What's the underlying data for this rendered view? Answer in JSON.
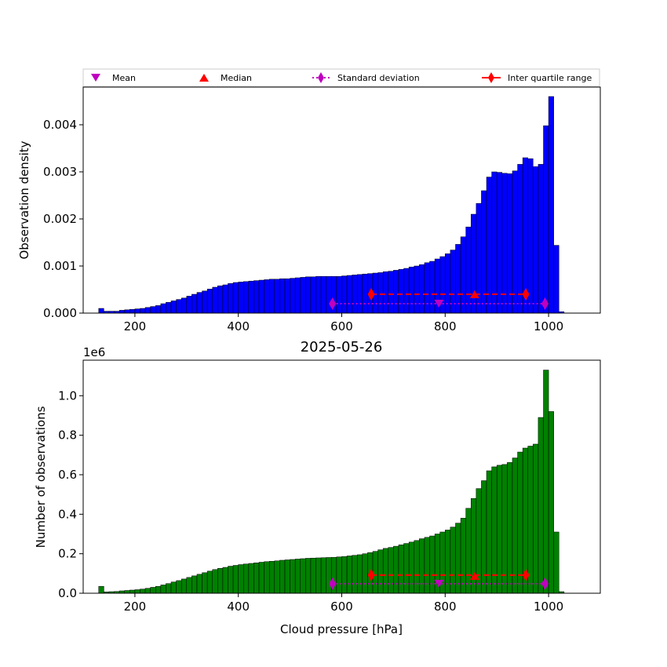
{
  "figure": {
    "title": "2025-05-26",
    "legend": [
      "Mean",
      "Median",
      "Standard deviation",
      "Inter quartile range"
    ]
  },
  "chart_data": [
    {
      "type": "bar",
      "panel": "top",
      "ylabel": "Observation density",
      "xlabel": "",
      "xlim": [
        100,
        1100
      ],
      "ylim": [
        0,
        0.0048
      ],
      "bar_color": "#0000ff",
      "bin_start": 130,
      "bin_width": 10,
      "values": [
        0.0001,
        4e-05,
        4e-05,
        4e-05,
        6e-05,
        7e-05,
        8e-05,
        9e-05,
        0.0001,
        0.00012,
        0.00014,
        0.00016,
        0.0002,
        0.00023,
        0.00026,
        0.00029,
        0.00032,
        0.00036,
        0.0004,
        0.00044,
        0.00047,
        0.00051,
        0.00055,
        0.00058,
        0.0006,
        0.00063,
        0.00065,
        0.00066,
        0.00067,
        0.00068,
        0.00069,
        0.0007,
        0.00071,
        0.00072,
        0.00072,
        0.00073,
        0.00073,
        0.00074,
        0.00075,
        0.00076,
        0.00077,
        0.00077,
        0.00078,
        0.00078,
        0.00078,
        0.00078,
        0.00078,
        0.00079,
        0.0008,
        0.00081,
        0.00082,
        0.00083,
        0.00084,
        0.00085,
        0.00086,
        0.00088,
        0.00089,
        0.00091,
        0.00093,
        0.00095,
        0.00098,
        0.001,
        0.00103,
        0.00107,
        0.0011,
        0.00115,
        0.0012,
        0.00126,
        0.00134,
        0.00146,
        0.00162,
        0.00183,
        0.0021,
        0.00233,
        0.0026,
        0.00289,
        0.003,
        0.00299,
        0.00297,
        0.00296,
        0.00302,
        0.00316,
        0.0033,
        0.00328,
        0.00311,
        0.00316,
        0.00398,
        0.0046,
        0.00144,
        3e-05
      ],
      "yticks": [
        "0.000",
        "0.001",
        "0.002",
        "0.003",
        "0.004"
      ],
      "ytick_values": [
        0,
        0.001,
        0.002,
        0.003,
        0.004
      ],
      "xticks": [
        "200",
        "400",
        "600",
        "800",
        "1000"
      ],
      "xtick_values": [
        200,
        400,
        600,
        800,
        1000
      ],
      "stats": {
        "mean": 788,
        "median": 857,
        "std_range": [
          582,
          993
        ],
        "iqr_range": [
          657,
          956
        ],
        "std_y": 0.0002,
        "mean_y": 0.0002,
        "iqr_y": 0.0004,
        "median_y": 0.0004
      }
    },
    {
      "type": "bar",
      "panel": "bottom",
      "ylabel": "Number of observations",
      "xlabel": "Cloud pressure [hPa]",
      "offset_label": "1e6",
      "xlim": [
        100,
        1100
      ],
      "ylim": [
        0,
        1.18
      ],
      "bar_color": "#008000",
      "bin_start": 130,
      "bin_width": 10,
      "values": [
        0.035,
        0.007,
        0.008,
        0.009,
        0.012,
        0.014,
        0.016,
        0.018,
        0.021,
        0.025,
        0.03,
        0.035,
        0.042,
        0.049,
        0.057,
        0.064,
        0.072,
        0.08,
        0.088,
        0.096,
        0.104,
        0.112,
        0.12,
        0.126,
        0.131,
        0.137,
        0.141,
        0.145,
        0.148,
        0.151,
        0.154,
        0.157,
        0.16,
        0.162,
        0.164,
        0.167,
        0.169,
        0.171,
        0.173,
        0.175,
        0.177,
        0.178,
        0.179,
        0.18,
        0.181,
        0.182,
        0.184,
        0.186,
        0.189,
        0.192,
        0.195,
        0.2,
        0.206,
        0.212,
        0.22,
        0.227,
        0.232,
        0.238,
        0.245,
        0.252,
        0.259,
        0.267,
        0.276,
        0.283,
        0.29,
        0.3,
        0.31,
        0.32,
        0.335,
        0.355,
        0.38,
        0.43,
        0.48,
        0.53,
        0.57,
        0.62,
        0.64,
        0.648,
        0.652,
        0.662,
        0.685,
        0.715,
        0.735,
        0.745,
        0.755,
        0.89,
        1.13,
        0.92,
        0.31,
        0.008
      ],
      "yticks": [
        "0.0",
        "0.2",
        "0.4",
        "0.6",
        "0.8",
        "1.0"
      ],
      "ytick_values": [
        0,
        0.2,
        0.4,
        0.6,
        0.8,
        1.0
      ],
      "xticks": [
        "200",
        "400",
        "600",
        "800",
        "1000"
      ],
      "xtick_values": [
        200,
        400,
        600,
        800,
        1000
      ],
      "stats": {
        "mean": 788,
        "median": 857,
        "std_range": [
          582,
          993
        ],
        "iqr_range": [
          657,
          956
        ],
        "std_y": 0.048,
        "mean_y": 0.048,
        "iqr_y": 0.092,
        "median_y": 0.088
      }
    }
  ]
}
